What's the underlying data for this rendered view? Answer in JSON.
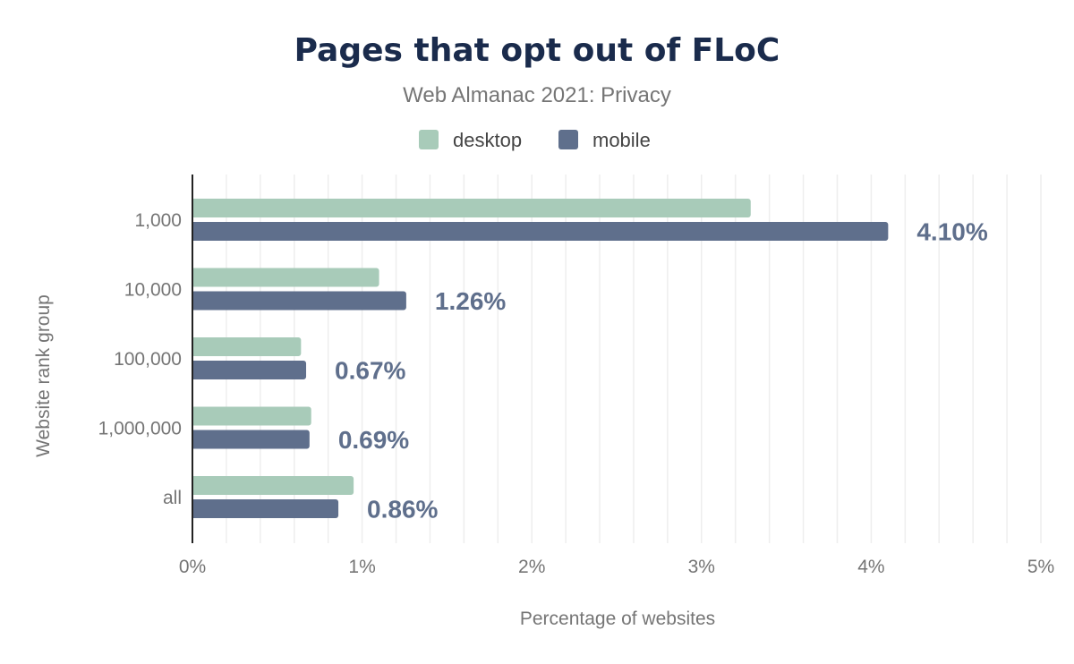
{
  "chart_data": {
    "type": "bar",
    "orientation": "horizontal",
    "title": "Pages that opt out of FLoC",
    "subtitle": "Web Almanac 2021: Privacy",
    "xlabel": "Percentage of websites",
    "ylabel": "Website rank group",
    "categories": [
      "1,000",
      "10,000",
      "100,000",
      "1,000,000",
      "all"
    ],
    "series": [
      {
        "name": "desktop",
        "color": "#a8cbb9",
        "values": [
          3.29,
          1.1,
          0.64,
          0.7,
          0.95
        ]
      },
      {
        "name": "mobile",
        "color": "#5f6f8c",
        "values": [
          4.1,
          1.26,
          0.67,
          0.69,
          0.86
        ],
        "data_labels": [
          "4.10%",
          "1.26%",
          "0.67%",
          "0.69%",
          "0.86%"
        ]
      }
    ],
    "xlim": [
      0,
      5
    ],
    "xticks": [
      "0%",
      "1%",
      "2%",
      "3%",
      "4%",
      "5%"
    ],
    "grid": true,
    "legend_position": "top-center"
  }
}
